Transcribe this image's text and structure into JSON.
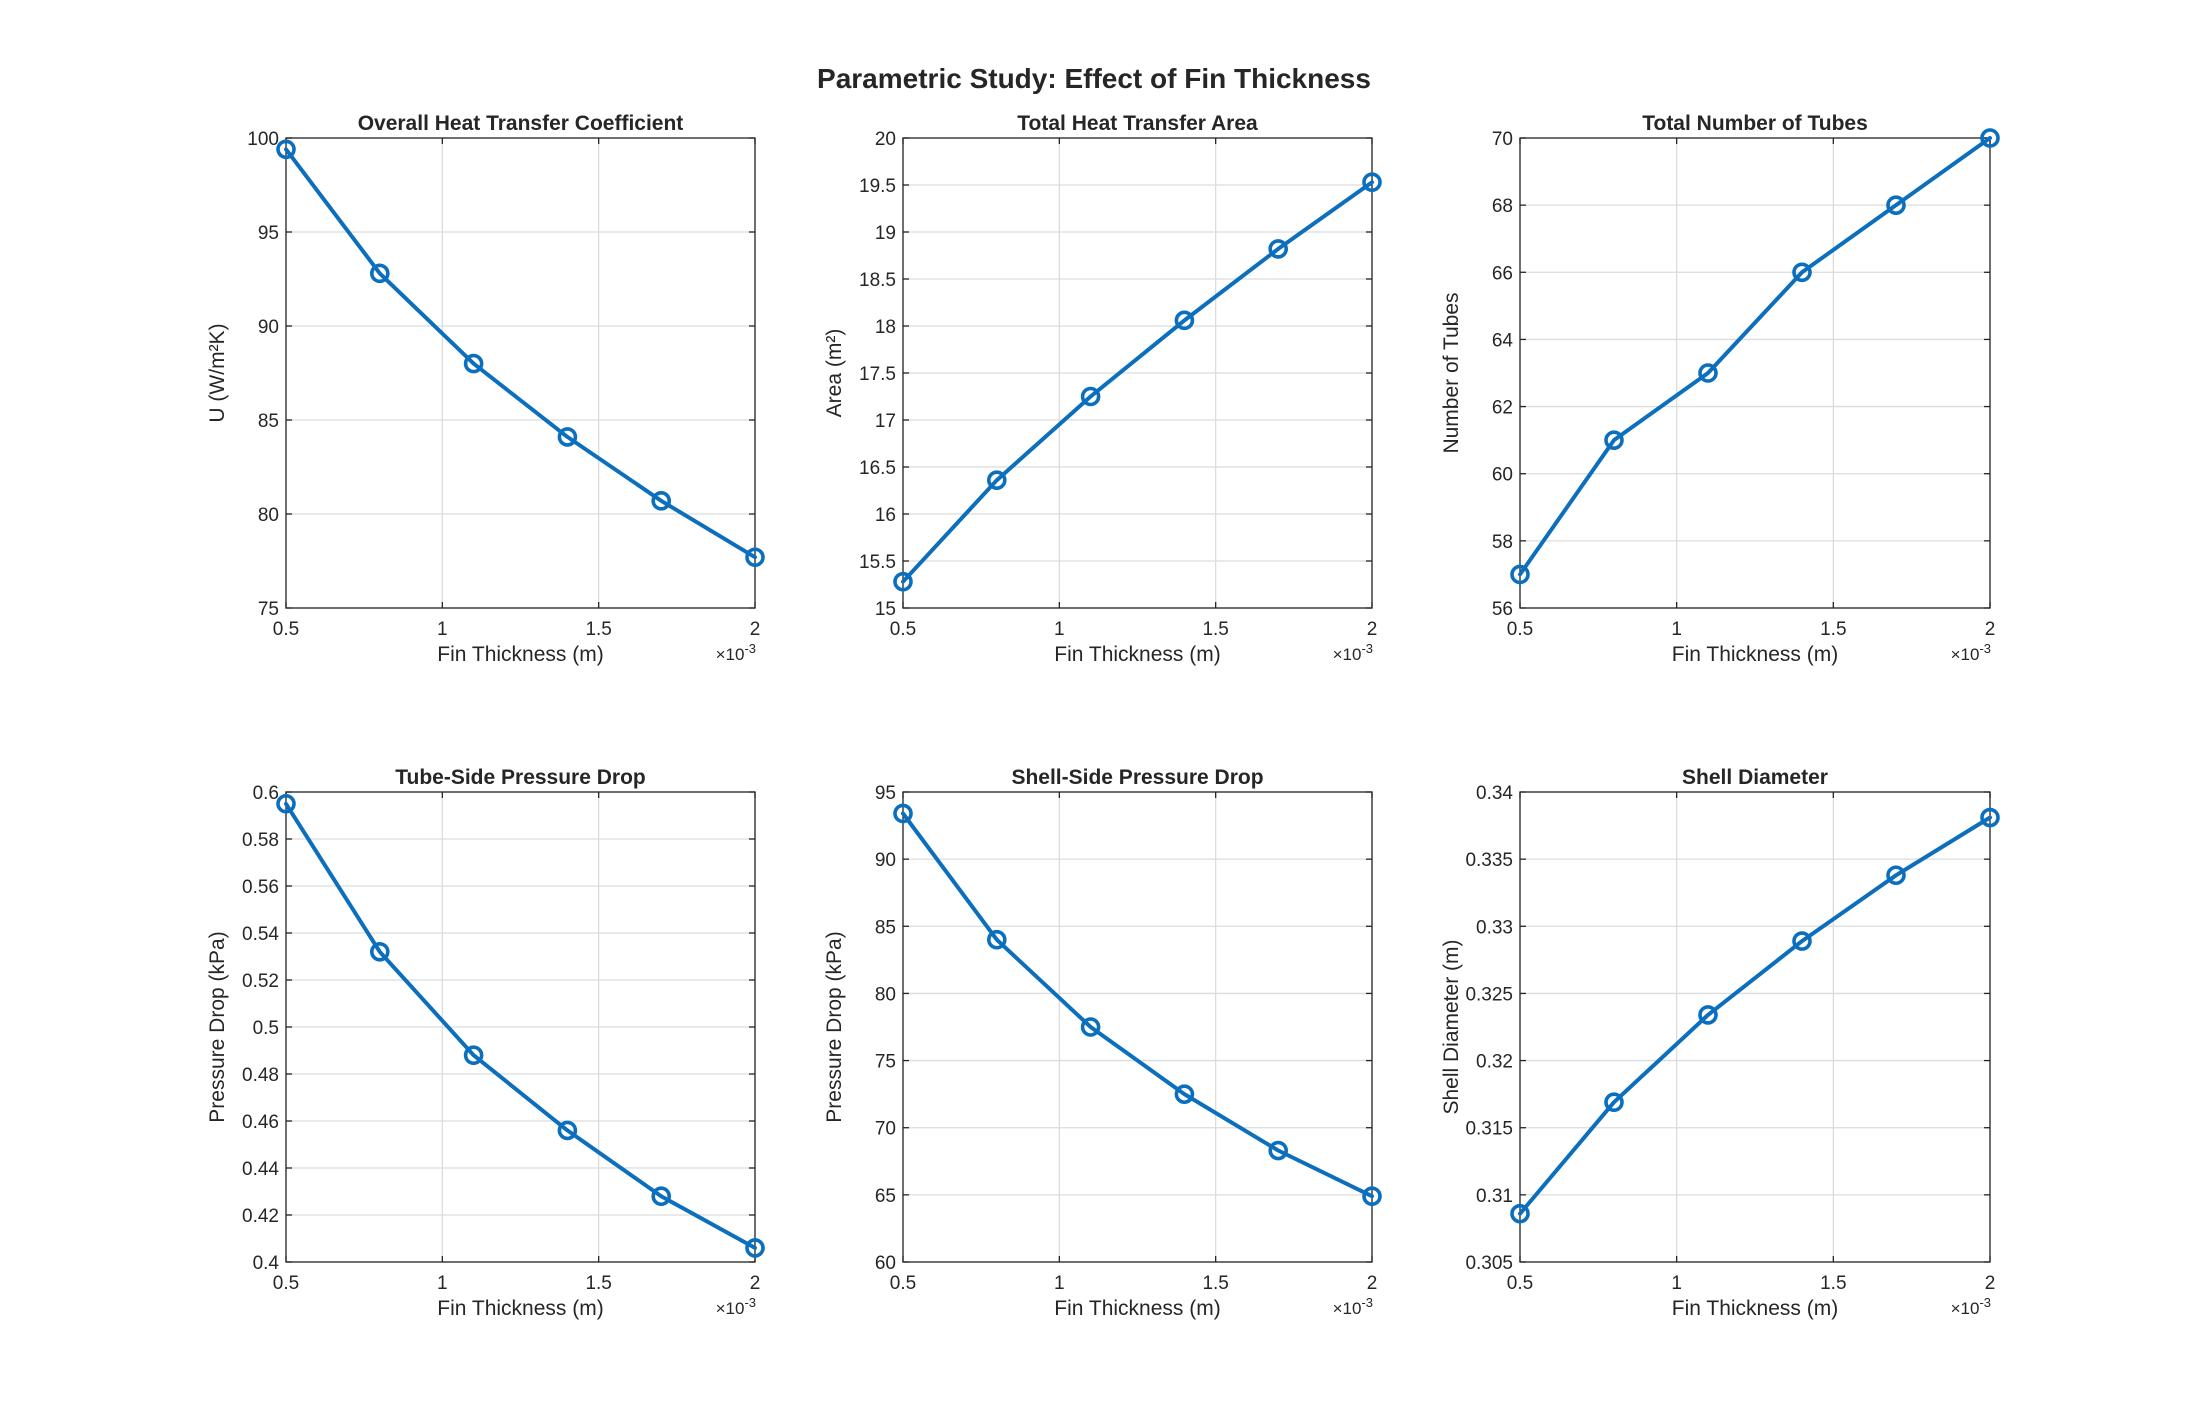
{
  "figure_title": "Parametric Study: Effect of Fin Thickness",
  "line_color": "#0b6fbd",
  "chart_data": [
    {
      "type": "line",
      "title": "Overall Heat Transfer Coefficient",
      "xlabel": "Fin Thickness (m)",
      "ylabel": "U (W/m²K)",
      "x": [
        0.0005,
        0.0008,
        0.0011,
        0.0014,
        0.0017,
        0.002
      ],
      "y": [
        99.4,
        92.8,
        88.0,
        84.1,
        80.7,
        77.7
      ],
      "xlim": [
        0.0005,
        0.002
      ],
      "ylim": [
        75,
        100
      ],
      "xticks": [
        0.5,
        1,
        1.5,
        2
      ],
      "xtick_labels": [
        "0.5",
        "1",
        "1.5",
        "2"
      ],
      "x_multiplier": "×10",
      "x_multiplier_exp": "-3",
      "yticks": [
        75,
        80,
        85,
        90,
        95,
        100
      ],
      "ytick_labels": [
        "75",
        "80",
        "85",
        "90",
        "95",
        "100"
      ],
      "grid": true,
      "marker": "circle"
    },
    {
      "type": "line",
      "title": "Total Heat Transfer Area",
      "xlabel": "Fin Thickness (m)",
      "ylabel": "Area (m²)",
      "x": [
        0.0005,
        0.0008,
        0.0011,
        0.0014,
        0.0017,
        0.002
      ],
      "y": [
        15.28,
        16.36,
        17.25,
        18.06,
        18.82,
        19.53
      ],
      "xlim": [
        0.0005,
        0.002
      ],
      "ylim": [
        15,
        20
      ],
      "xticks": [
        0.5,
        1,
        1.5,
        2
      ],
      "xtick_labels": [
        "0.5",
        "1",
        "1.5",
        "2"
      ],
      "x_multiplier": "×10",
      "x_multiplier_exp": "-3",
      "yticks": [
        15,
        15.5,
        16,
        16.5,
        17,
        17.5,
        18,
        18.5,
        19,
        19.5,
        20
      ],
      "ytick_labels": [
        "15",
        "15.5",
        "16",
        "16.5",
        "17",
        "17.5",
        "18",
        "18.5",
        "19",
        "19.5",
        "20"
      ],
      "grid": true,
      "marker": "circle"
    },
    {
      "type": "line",
      "title": "Total Number of Tubes",
      "xlabel": "Fin Thickness (m)",
      "ylabel": "Number of Tubes",
      "x": [
        0.0005,
        0.0008,
        0.0011,
        0.0014,
        0.0017,
        0.002
      ],
      "y": [
        57,
        61,
        63,
        66,
        68,
        70
      ],
      "xlim": [
        0.0005,
        0.002
      ],
      "ylim": [
        56,
        70
      ],
      "xticks": [
        0.5,
        1,
        1.5,
        2
      ],
      "xtick_labels": [
        "0.5",
        "1",
        "1.5",
        "2"
      ],
      "x_multiplier": "×10",
      "x_multiplier_exp": "-3",
      "yticks": [
        56,
        58,
        60,
        62,
        64,
        66,
        68,
        70
      ],
      "ytick_labels": [
        "56",
        "58",
        "60",
        "62",
        "64",
        "66",
        "68",
        "70"
      ],
      "grid": true,
      "marker": "circle"
    },
    {
      "type": "line",
      "title": "Tube-Side Pressure Drop",
      "xlabel": "Fin Thickness (m)",
      "ylabel": "Pressure Drop (kPa)",
      "x": [
        0.0005,
        0.0008,
        0.0011,
        0.0014,
        0.0017,
        0.002
      ],
      "y": [
        0.595,
        0.532,
        0.488,
        0.456,
        0.428,
        0.406
      ],
      "xlim": [
        0.0005,
        0.002
      ],
      "ylim": [
        0.4,
        0.6
      ],
      "xticks": [
        0.5,
        1,
        1.5,
        2
      ],
      "xtick_labels": [
        "0.5",
        "1",
        "1.5",
        "2"
      ],
      "x_multiplier": "×10",
      "x_multiplier_exp": "-3",
      "yticks": [
        0.4,
        0.42,
        0.44,
        0.46,
        0.48,
        0.5,
        0.52,
        0.54,
        0.56,
        0.58,
        0.6
      ],
      "ytick_labels": [
        "0.4",
        "0.42",
        "0.44",
        "0.46",
        "0.48",
        "0.5",
        "0.52",
        "0.54",
        "0.56",
        "0.58",
        "0.6"
      ],
      "grid": true,
      "marker": "circle"
    },
    {
      "type": "line",
      "title": "Shell-Side Pressure Drop",
      "xlabel": "Fin Thickness (m)",
      "ylabel": "Pressure Drop (kPa)",
      "x": [
        0.0005,
        0.0008,
        0.0011,
        0.0014,
        0.0017,
        0.002
      ],
      "y": [
        93.4,
        84.0,
        77.5,
        72.5,
        68.3,
        64.9
      ],
      "xlim": [
        0.0005,
        0.002
      ],
      "ylim": [
        60,
        95
      ],
      "xticks": [
        0.5,
        1,
        1.5,
        2
      ],
      "xtick_labels": [
        "0.5",
        "1",
        "1.5",
        "2"
      ],
      "x_multiplier": "×10",
      "x_multiplier_exp": "-3",
      "yticks": [
        60,
        65,
        70,
        75,
        80,
        85,
        90,
        95
      ],
      "ytick_labels": [
        "60",
        "65",
        "70",
        "75",
        "80",
        "85",
        "90",
        "95"
      ],
      "grid": true,
      "marker": "circle"
    },
    {
      "type": "line",
      "title": "Shell Diameter",
      "xlabel": "Fin Thickness (m)",
      "ylabel": "Shell Diameter (m)",
      "x": [
        0.0005,
        0.0008,
        0.0011,
        0.0014,
        0.0017,
        0.002
      ],
      "y": [
        0.3086,
        0.3169,
        0.3234,
        0.3289,
        0.3338,
        0.3381
      ],
      "xlim": [
        0.0005,
        0.002
      ],
      "ylim": [
        0.305,
        0.34
      ],
      "xticks": [
        0.5,
        1,
        1.5,
        2
      ],
      "xtick_labels": [
        "0.5",
        "1",
        "1.5",
        "2"
      ],
      "x_multiplier": "×10",
      "x_multiplier_exp": "-3",
      "yticks": [
        0.305,
        0.31,
        0.315,
        0.32,
        0.325,
        0.33,
        0.335,
        0.34
      ],
      "ytick_labels": [
        "0.305",
        "0.31",
        "0.315",
        "0.32",
        "0.325",
        "0.33",
        "0.335",
        "0.34"
      ],
      "grid": true,
      "marker": "circle"
    }
  ]
}
